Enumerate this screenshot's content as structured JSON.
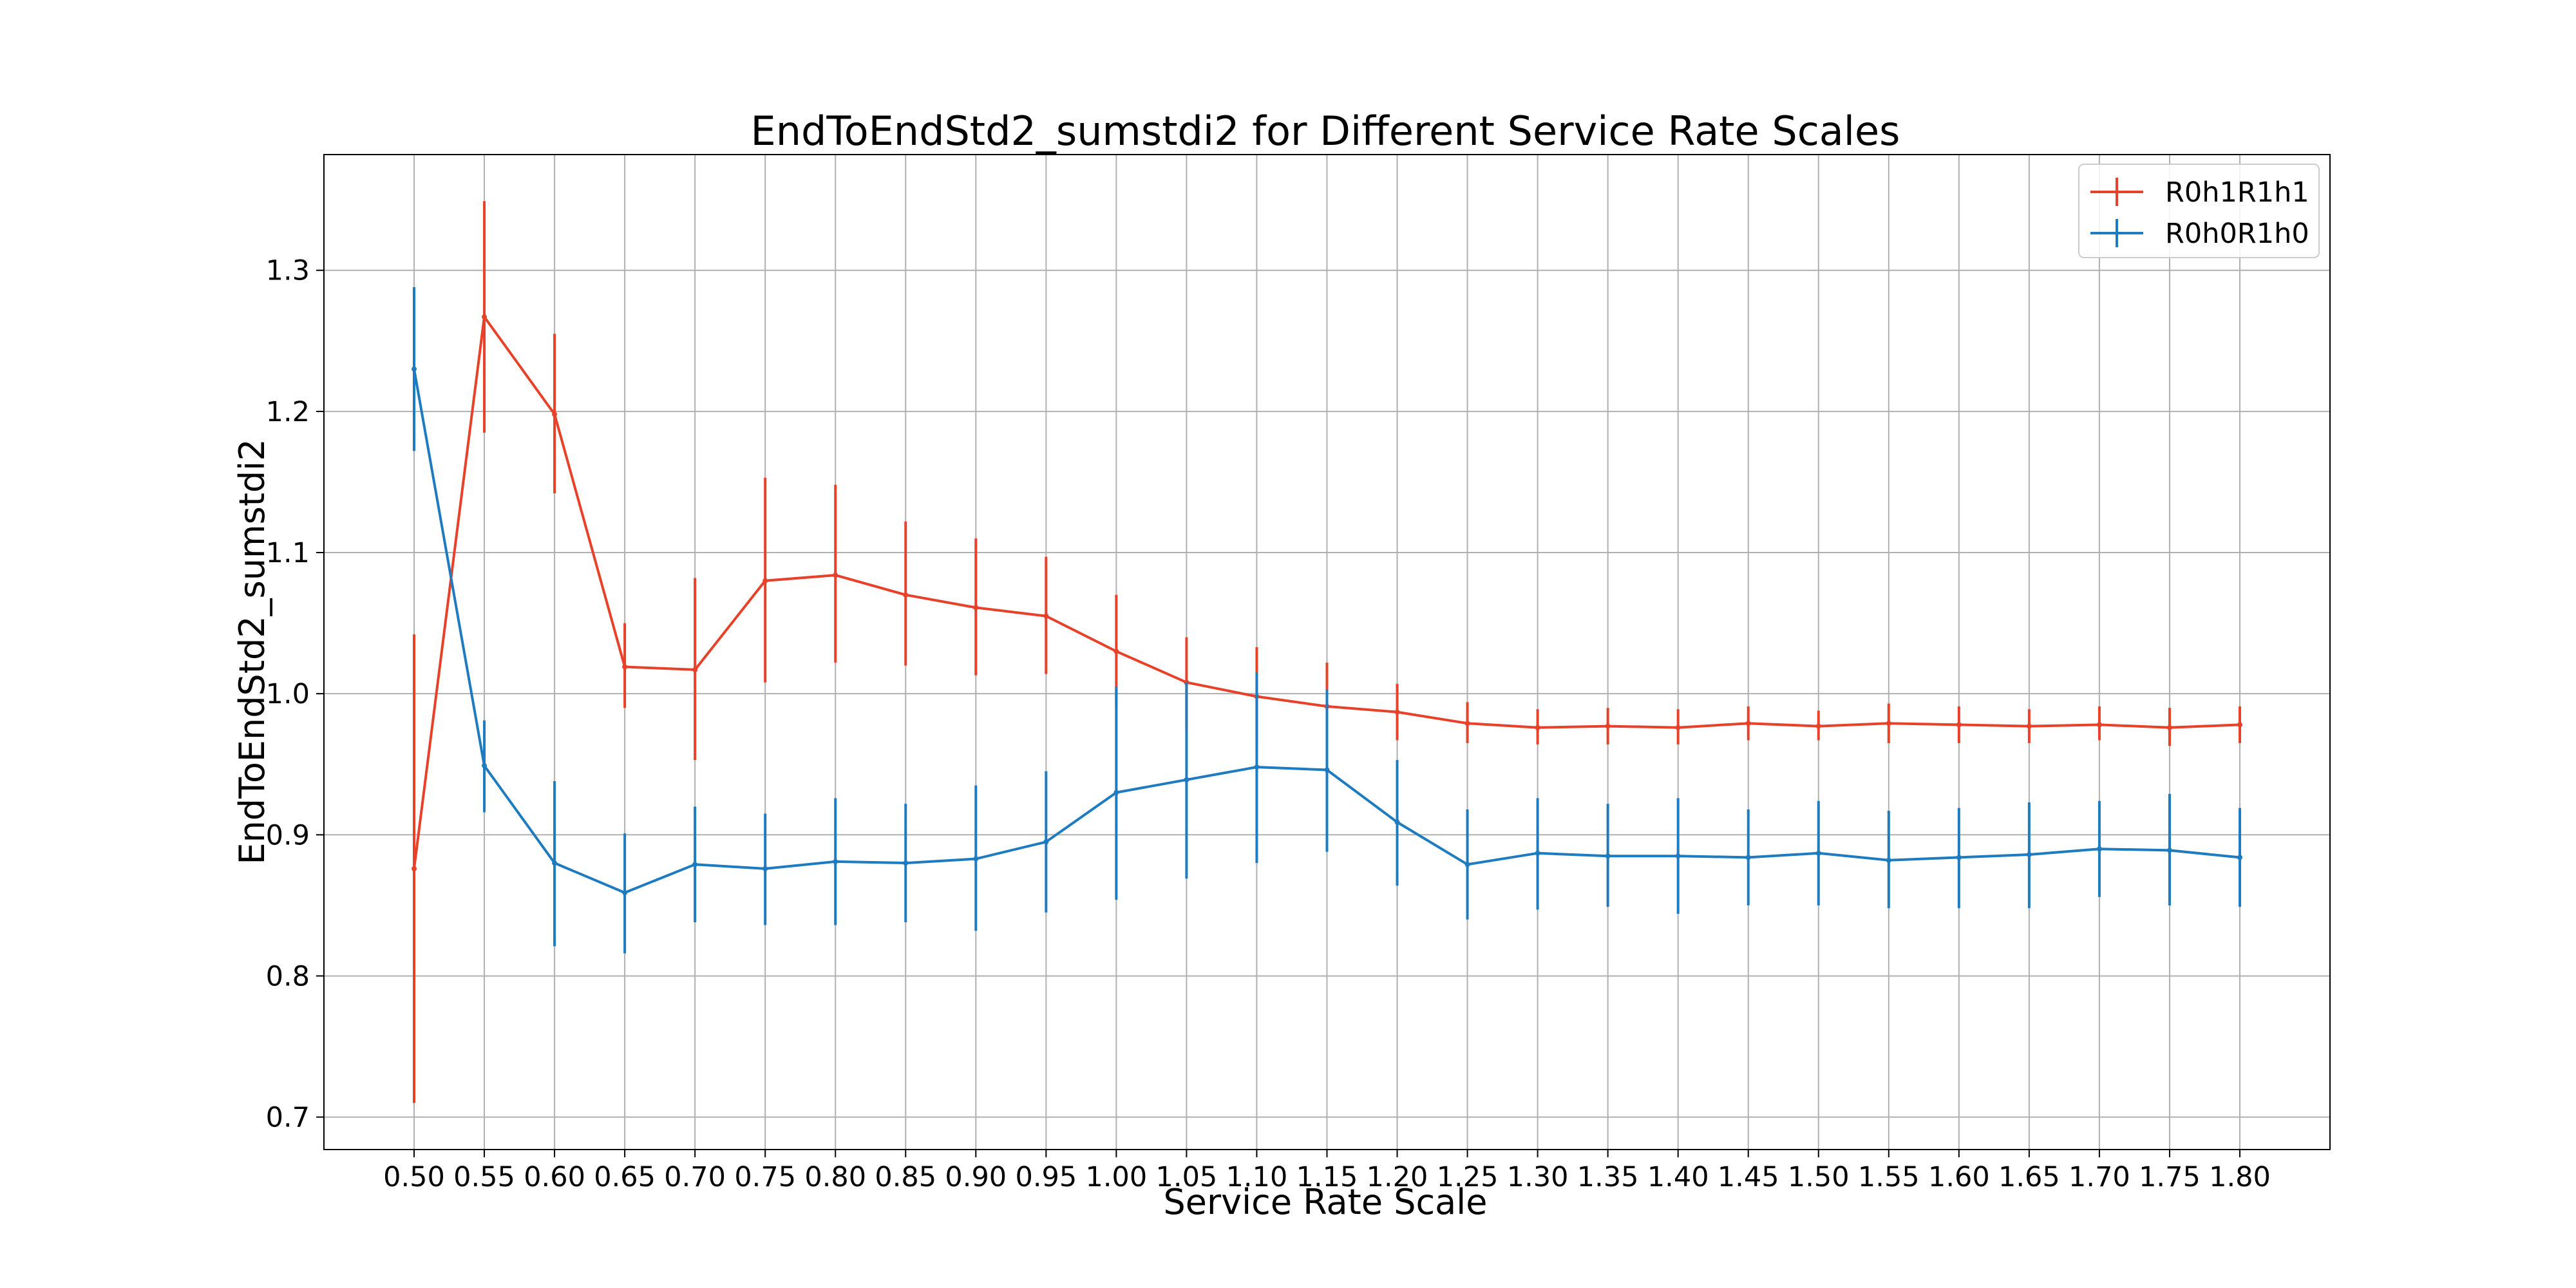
{
  "chart_data": {
    "type": "line",
    "title": "EndToEndStd2_sumstdi2 for Different Service Rate Scales",
    "xlabel": "Service Rate Scale",
    "ylabel": "EndToEndStd2_sumstdi2",
    "categories": [
      "0.50",
      "0.55",
      "0.60",
      "0.65",
      "0.70",
      "0.75",
      "0.80",
      "0.85",
      "0.90",
      "0.95",
      "1.00",
      "1.05",
      "1.10",
      "1.15",
      "1.20",
      "1.25",
      "1.30",
      "1.35",
      "1.40",
      "1.45",
      "1.50",
      "1.55",
      "1.60",
      "1.65",
      "1.70",
      "1.75",
      "1.80"
    ],
    "ylim": [
      0.677,
      1.382
    ],
    "yticks": [
      "0.7",
      "0.8",
      "0.9",
      "1.0",
      "1.1",
      "1.2",
      "1.3"
    ],
    "grid": true,
    "legend_position": "top-right",
    "series": [
      {
        "name": "R0h1R1h1",
        "color": "#e8412a",
        "values": [
          0.876,
          1.267,
          1.198,
          1.019,
          1.017,
          1.08,
          1.084,
          1.07,
          1.061,
          1.055,
          1.03,
          1.008,
          0.998,
          0.991,
          0.987,
          0.979,
          0.976,
          0.977,
          0.976,
          0.979,
          0.977,
          0.979,
          0.978,
          0.977,
          0.978,
          0.976,
          0.978
        ],
        "err_low": [
          0.71,
          1.185,
          1.142,
          0.99,
          0.953,
          1.008,
          1.022,
          1.02,
          1.013,
          1.014,
          0.99,
          0.975,
          0.963,
          0.96,
          0.967,
          0.965,
          0.964,
          0.964,
          0.964,
          0.967,
          0.967,
          0.965,
          0.965,
          0.965,
          0.967,
          0.963,
          0.965
        ],
        "err_high": [
          1.042,
          1.349,
          1.255,
          1.05,
          1.082,
          1.153,
          1.148,
          1.122,
          1.11,
          1.097,
          1.07,
          1.04,
          1.033,
          1.022,
          1.007,
          0.994,
          0.989,
          0.99,
          0.989,
          0.991,
          0.988,
          0.993,
          0.991,
          0.989,
          0.991,
          0.99,
          0.991
        ]
      },
      {
        "name": "R0h0R1h0",
        "color": "#1f7bbf",
        "values": [
          1.23,
          0.949,
          0.88,
          0.859,
          0.879,
          0.876,
          0.881,
          0.88,
          0.883,
          0.895,
          0.93,
          0.939,
          0.948,
          0.946,
          0.909,
          0.879,
          0.887,
          0.885,
          0.885,
          0.884,
          0.887,
          0.882,
          0.884,
          0.886,
          0.89,
          0.889,
          0.884
        ],
        "err_low": [
          1.172,
          0.916,
          0.821,
          0.816,
          0.838,
          0.836,
          0.836,
          0.838,
          0.832,
          0.845,
          0.854,
          0.869,
          0.88,
          0.888,
          0.864,
          0.84,
          0.847,
          0.849,
          0.844,
          0.85,
          0.85,
          0.848,
          0.848,
          0.848,
          0.856,
          0.85,
          0.849
        ],
        "err_high": [
          1.288,
          0.981,
          0.938,
          0.901,
          0.92,
          0.915,
          0.926,
          0.922,
          0.935,
          0.945,
          1.005,
          1.008,
          1.015,
          1.003,
          0.953,
          0.918,
          0.926,
          0.922,
          0.926,
          0.918,
          0.924,
          0.917,
          0.919,
          0.923,
          0.924,
          0.929,
          0.919
        ]
      }
    ]
  }
}
